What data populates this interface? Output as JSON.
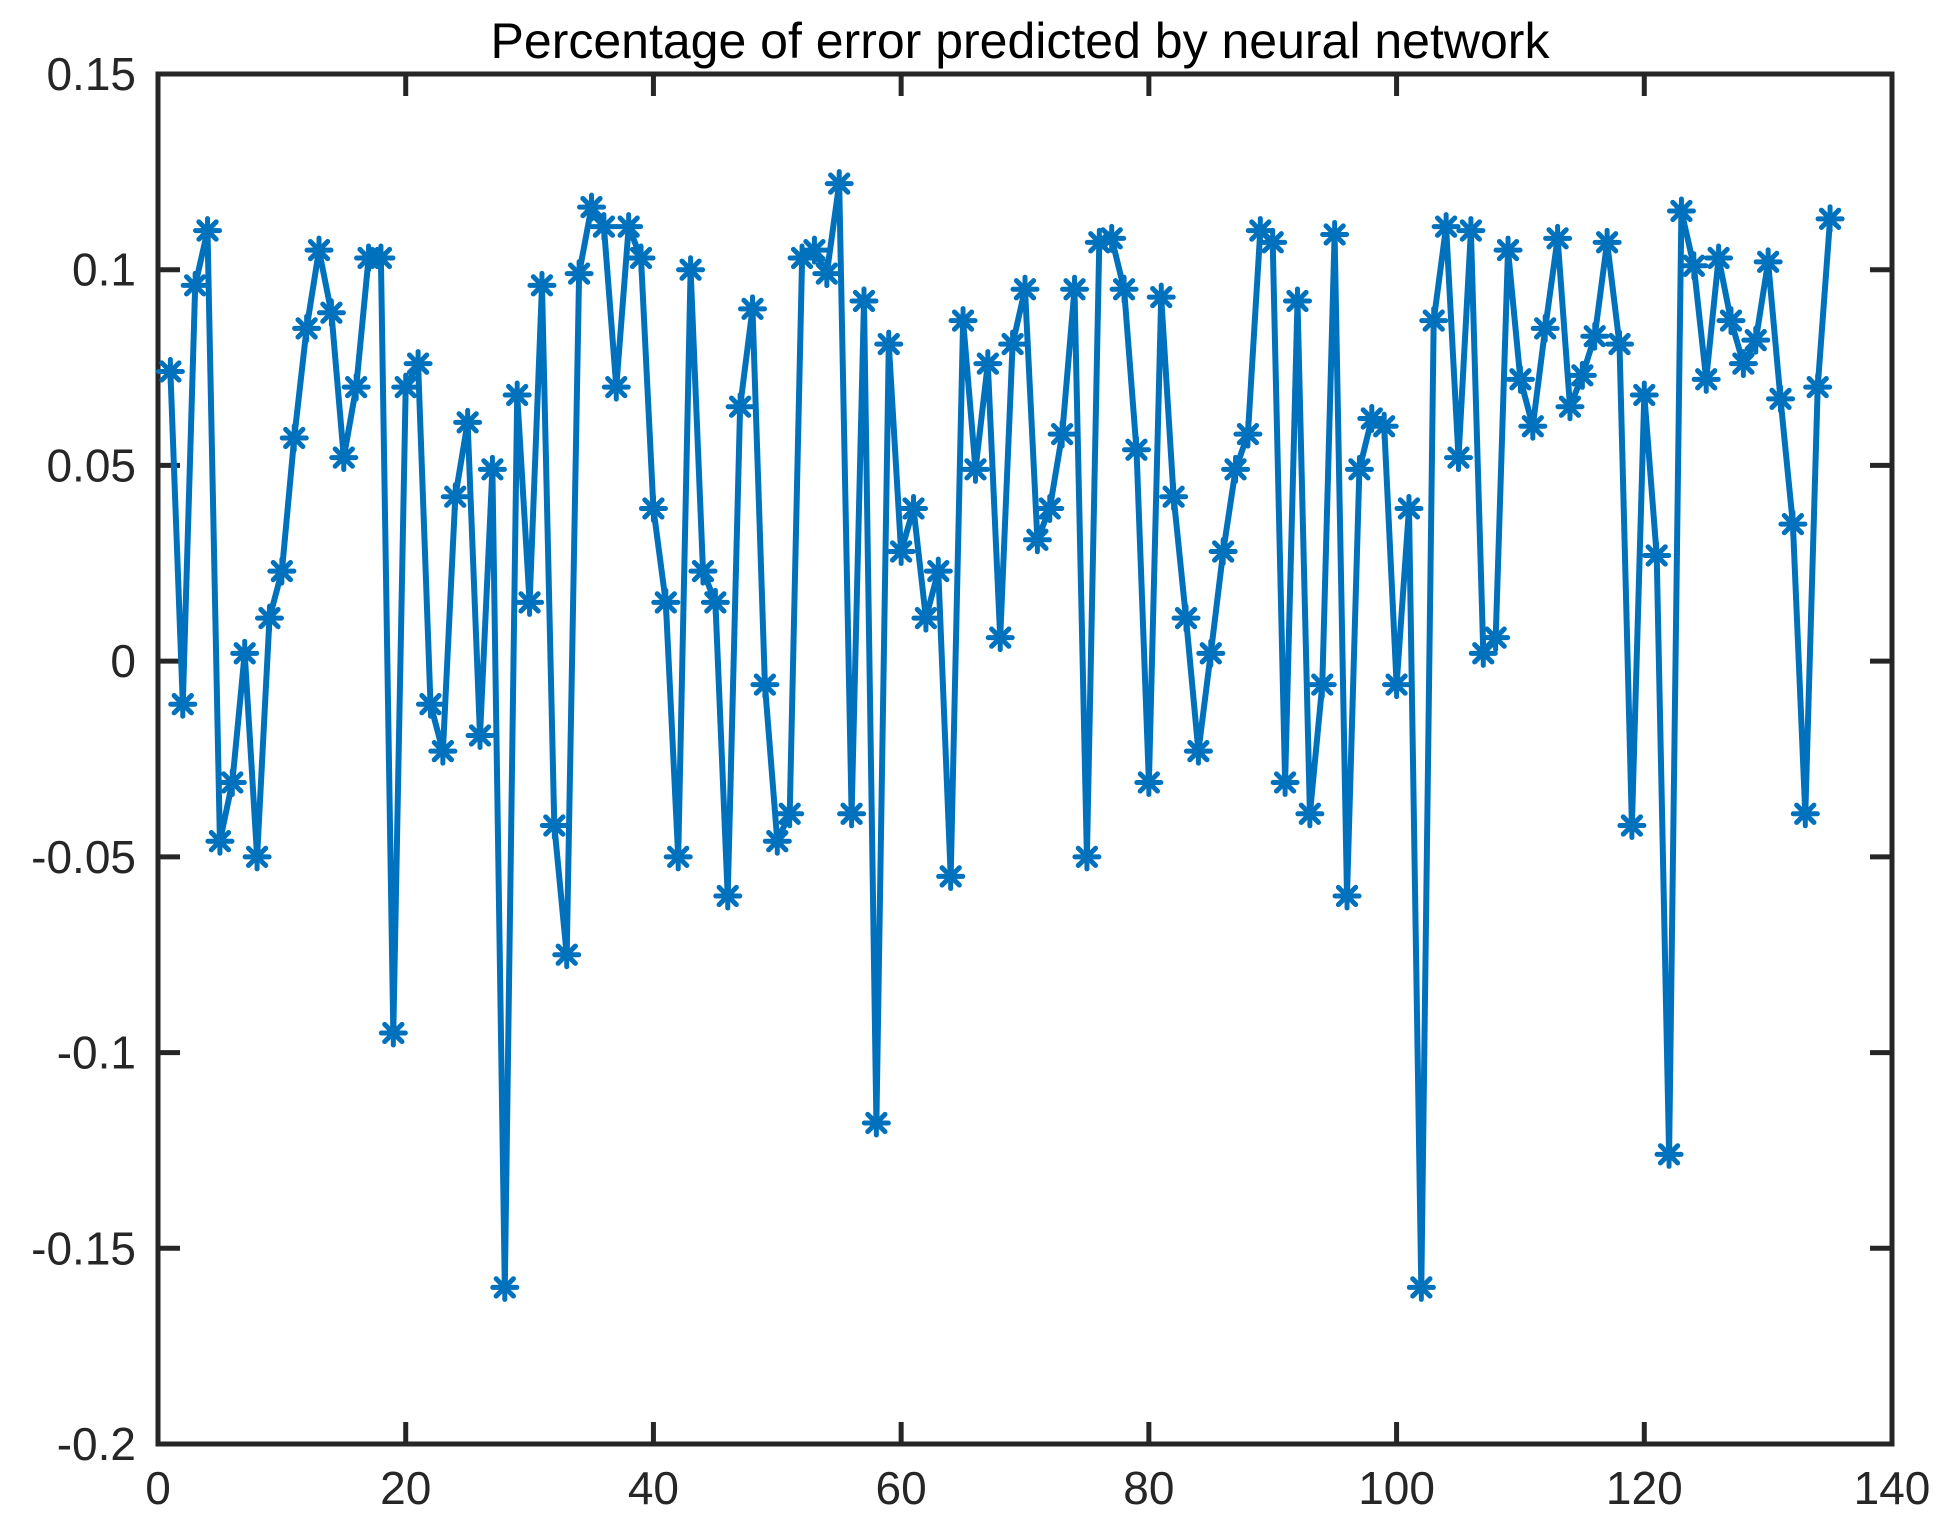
{
  "chart_data": {
    "type": "line",
    "title": "Percentage of error predicted by neural network",
    "xlabel": "",
    "ylabel": "",
    "xlim": [
      0,
      140
    ],
    "ylim": [
      -0.2,
      0.15
    ],
    "xticks": [
      0,
      20,
      40,
      60,
      80,
      100,
      120,
      140
    ],
    "yticks": [
      -0.2,
      -0.15,
      -0.1,
      -0.05,
      0,
      0.05,
      0.1,
      0.15
    ],
    "xtick_labels": [
      "0",
      "20",
      "40",
      "60",
      "80",
      "100",
      "120",
      "140"
    ],
    "ytick_labels": [
      "-0.2",
      "-0.15",
      "-0.1",
      "-0.05",
      "0",
      "0.05",
      "0.1",
      "0.15"
    ],
    "grid": false,
    "marker": "asterisk",
    "line_color": "#0072BD",
    "x": [
      1,
      2,
      3,
      4,
      5,
      6,
      7,
      8,
      9,
      10,
      11,
      12,
      13,
      14,
      15,
      16,
      17,
      18,
      19,
      20,
      21,
      22,
      23,
      24,
      25,
      26,
      27,
      28,
      29,
      30,
      31,
      32,
      33,
      34,
      35,
      36,
      37,
      38,
      39,
      40,
      41,
      42,
      43,
      44,
      45,
      46,
      47,
      48,
      49,
      50,
      51,
      52,
      53,
      54,
      55,
      56,
      57,
      58,
      59,
      60,
      61,
      62,
      63,
      64,
      65,
      66,
      67,
      68,
      69,
      70,
      71,
      72,
      73,
      74,
      75,
      76,
      77,
      78,
      79,
      80,
      81,
      82,
      83,
      84,
      85,
      86,
      87,
      88,
      89,
      90,
      91,
      92,
      93,
      94,
      95,
      96,
      97,
      98,
      99,
      100,
      101,
      102,
      103,
      104,
      105,
      106,
      107,
      108,
      109,
      110,
      111,
      112,
      113,
      114,
      115,
      116,
      117,
      118,
      119,
      120,
      121,
      122,
      123,
      124,
      125,
      126,
      127,
      128,
      129,
      130,
      131,
      132,
      133,
      134,
      135
    ],
    "y": [
      0.074,
      -0.011,
      0.096,
      0.11,
      -0.046,
      -0.031,
      0.002,
      -0.05,
      0.011,
      0.023,
      0.057,
      0.085,
      0.105,
      0.089,
      0.052,
      0.07,
      0.103,
      0.103,
      -0.095,
      0.07,
      0.076,
      -0.011,
      -0.023,
      0.042,
      0.061,
      -0.019,
      0.049,
      -0.16,
      0.068,
      0.015,
      0.096,
      -0.042,
      -0.075,
      0.099,
      0.116,
      0.111,
      0.07,
      0.111,
      0.103,
      0.039,
      0.015,
      -0.05,
      0.1,
      0.023,
      0.015,
      -0.06,
      0.065,
      0.09,
      -0.006,
      -0.046,
      -0.039,
      0.103,
      0.105,
      0.099,
      0.122,
      -0.039,
      0.092,
      -0.118,
      0.081,
      0.028,
      0.039,
      0.011,
      0.023,
      -0.055,
      0.087,
      0.049,
      0.076,
      0.006,
      0.081,
      0.095,
      0.031,
      0.039,
      0.058,
      0.095,
      -0.05,
      0.107,
      0.108,
      0.095,
      0.054,
      -0.031,
      0.093,
      0.042,
      0.011,
      -0.023,
      0.002,
      0.028,
      0.049,
      0.058,
      0.11,
      0.107,
      -0.031,
      0.092,
      -0.039,
      -0.006,
      0.109,
      -0.06,
      0.049,
      0.062,
      0.06,
      -0.006,
      0.039,
      -0.16,
      0.087,
      0.111,
      0.052,
      0.11,
      0.002,
      0.006,
      0.105,
      0.072,
      0.06,
      0.085,
      0.108,
      0.065,
      0.073,
      0.083,
      0.107,
      0.081,
      -0.042,
      0.068,
      0.027,
      -0.126,
      0.115,
      0.101,
      0.072,
      0.103,
      0.087,
      0.076,
      0.082,
      0.102,
      0.067,
      0.035,
      -0.039,
      0.07,
      0.113
    ]
  }
}
